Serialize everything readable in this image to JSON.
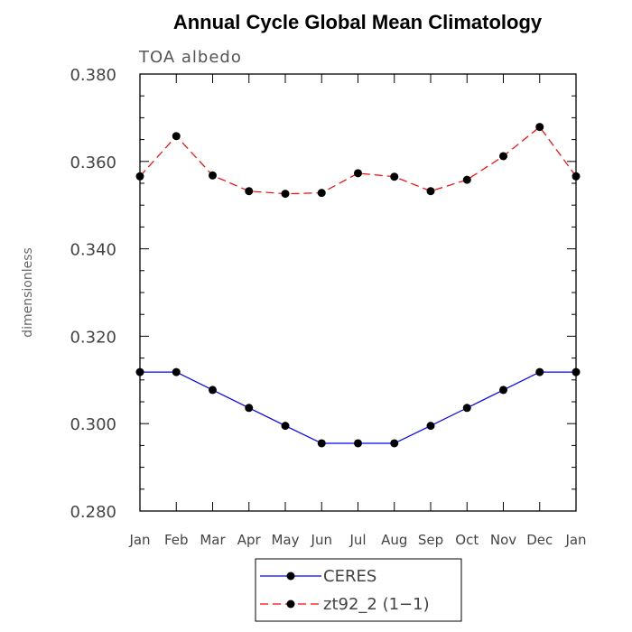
{
  "chart_data": {
    "type": "line",
    "title": "Annual Cycle Global Mean Climatology",
    "subtitle": "TOA albedo",
    "xlabel": "",
    "ylabel": "dimensionless",
    "categories": [
      "Jan",
      "Feb",
      "Mar",
      "Apr",
      "May",
      "Jun",
      "Jul",
      "Aug",
      "Sep",
      "Oct",
      "Nov",
      "Dec",
      "Jan"
    ],
    "ylim": [
      0.28,
      0.38
    ],
    "yticks": [
      "0.280",
      "0.300",
      "0.320",
      "0.340",
      "0.360",
      "0.380"
    ],
    "grid": false,
    "legend_position": "bottom-center",
    "series": [
      {
        "name": "CERES",
        "color": "#0000ff",
        "line_style": "solid",
        "marker": "filled-circle",
        "values": [
          0.3118,
          0.3118,
          0.3077,
          0.3036,
          0.2995,
          0.2955,
          0.2955,
          0.2955,
          0.2995,
          0.3036,
          0.3077,
          0.3118,
          0.3118
        ]
      },
      {
        "name": "zt92_2 (1−1)",
        "color": "#ff0000",
        "line_style": "dashed",
        "marker": "filled-circle",
        "values": [
          0.3566,
          0.3658,
          0.3568,
          0.3532,
          0.3526,
          0.3528,
          0.3573,
          0.3565,
          0.3532,
          0.3558,
          0.3612,
          0.3679,
          0.3566
        ]
      }
    ]
  }
}
